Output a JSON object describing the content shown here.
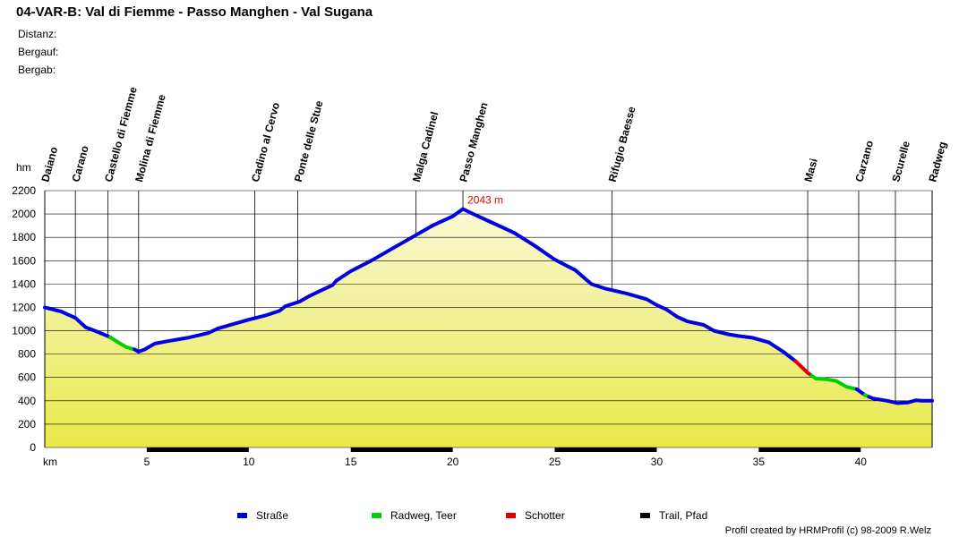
{
  "header": {
    "title": "04-VAR-B: Val di Fiemme - Passo Manghen - Val Sugana",
    "distance_label": "Distanz:",
    "ascent_label": "Bergauf:",
    "descent_label": "Bergab:"
  },
  "chart_data": {
    "type": "area",
    "title": "04-VAR-B: Val di Fiemme - Passo Manghen - Val Sugana",
    "xlabel": "km",
    "ylabel": "hm",
    "xlim": [
      0,
      43.5
    ],
    "ylim": [
      0,
      2200
    ],
    "x_ticks": [
      5,
      10,
      15,
      20,
      25,
      30,
      35,
      40
    ],
    "y_ticks": [
      0,
      200,
      400,
      600,
      800,
      1000,
      1200,
      1400,
      1600,
      1800,
      2000,
      2200
    ],
    "grid": "horizontal",
    "fill_gradient": [
      "#f8f8d4",
      "#e9e94a"
    ],
    "peak_annotation": {
      "x": 20.5,
      "y": 2043,
      "text": "2043 m",
      "color": "#e00000"
    },
    "profile": [
      {
        "x": 0,
        "y": 1200
      },
      {
        "x": 0.8,
        "y": 1165
      },
      {
        "x": 1.5,
        "y": 1110
      },
      {
        "x": 2.0,
        "y": 1030
      },
      {
        "x": 2.6,
        "y": 990
      },
      {
        "x": 3.2,
        "y": 945
      },
      {
        "x": 3.6,
        "y": 900
      },
      {
        "x": 4.0,
        "y": 860
      },
      {
        "x": 4.4,
        "y": 840
      },
      {
        "x": 4.6,
        "y": 820
      },
      {
        "x": 4.9,
        "y": 840
      },
      {
        "x": 5.4,
        "y": 890
      },
      {
        "x": 6.0,
        "y": 910
      },
      {
        "x": 7.0,
        "y": 940
      },
      {
        "x": 8.0,
        "y": 980
      },
      {
        "x": 8.5,
        "y": 1020
      },
      {
        "x": 9.3,
        "y": 1060
      },
      {
        "x": 10.0,
        "y": 1095
      },
      {
        "x": 10.8,
        "y": 1130
      },
      {
        "x": 11.5,
        "y": 1170
      },
      {
        "x": 11.8,
        "y": 1210
      },
      {
        "x": 12.5,
        "y": 1250
      },
      {
        "x": 13.0,
        "y": 1300
      },
      {
        "x": 13.6,
        "y": 1350
      },
      {
        "x": 14.1,
        "y": 1390
      },
      {
        "x": 14.3,
        "y": 1430
      },
      {
        "x": 15.0,
        "y": 1510
      },
      {
        "x": 16.0,
        "y": 1600
      },
      {
        "x": 17.0,
        "y": 1700
      },
      {
        "x": 18.0,
        "y": 1800
      },
      {
        "x": 19.0,
        "y": 1900
      },
      {
        "x": 20.0,
        "y": 1980
      },
      {
        "x": 20.5,
        "y": 2043
      },
      {
        "x": 21.0,
        "y": 2000
      },
      {
        "x": 22.0,
        "y": 1920
      },
      {
        "x": 23.0,
        "y": 1840
      },
      {
        "x": 24.0,
        "y": 1730
      },
      {
        "x": 25.0,
        "y": 1610
      },
      {
        "x": 26.0,
        "y": 1520
      },
      {
        "x": 26.8,
        "y": 1400
      },
      {
        "x": 27.5,
        "y": 1360
      },
      {
        "x": 28.5,
        "y": 1320
      },
      {
        "x": 29.5,
        "y": 1270
      },
      {
        "x": 30.0,
        "y": 1220
      },
      {
        "x": 30.5,
        "y": 1180
      },
      {
        "x": 31.0,
        "y": 1120
      },
      {
        "x": 31.5,
        "y": 1080
      },
      {
        "x": 32.3,
        "y": 1050
      },
      {
        "x": 32.8,
        "y": 1000
      },
      {
        "x": 33.5,
        "y": 970
      },
      {
        "x": 34.0,
        "y": 955
      },
      {
        "x": 34.7,
        "y": 940
      },
      {
        "x": 35.5,
        "y": 900
      },
      {
        "x": 36.2,
        "y": 820
      },
      {
        "x": 36.8,
        "y": 740
      },
      {
        "x": 37.4,
        "y": 640
      },
      {
        "x": 37.8,
        "y": 590
      },
      {
        "x": 38.3,
        "y": 585
      },
      {
        "x": 38.8,
        "y": 570
      },
      {
        "x": 39.3,
        "y": 520
      },
      {
        "x": 39.8,
        "y": 500
      },
      {
        "x": 40.2,
        "y": 450
      },
      {
        "x": 40.6,
        "y": 420
      },
      {
        "x": 41.3,
        "y": 400
      },
      {
        "x": 41.8,
        "y": 380
      },
      {
        "x": 42.3,
        "y": 385
      },
      {
        "x": 42.7,
        "y": 405
      },
      {
        "x": 43.0,
        "y": 400
      },
      {
        "x": 43.5,
        "y": 400
      }
    ],
    "segments": [
      {
        "type": "Straße",
        "from": 0,
        "to": 3.2
      },
      {
        "type": "Radweg, Teer",
        "from": 3.2,
        "to": 4.4
      },
      {
        "type": "Straße",
        "from": 4.4,
        "to": 36.8
      },
      {
        "type": "Schotter",
        "from": 36.8,
        "to": 37.6
      },
      {
        "type": "Radweg, Teer",
        "from": 37.6,
        "to": 39.8
      },
      {
        "type": "Straße",
        "from": 39.8,
        "to": 40.2
      },
      {
        "type": "Radweg, Teer",
        "from": 40.2,
        "to": 40.4
      },
      {
        "type": "Straße",
        "from": 40.4,
        "to": 43.5
      }
    ],
    "trail_bar": [
      {
        "from": 5,
        "to": 10
      },
      {
        "from": 15,
        "to": 20
      },
      {
        "from": 25,
        "to": 30
      },
      {
        "from": 35,
        "to": 40
      }
    ],
    "waypoints": [
      {
        "name": "Daiano",
        "x": 0
      },
      {
        "name": "Carano",
        "x": 1.5
      },
      {
        "name": "Castello di Fiemme",
        "x": 3.1
      },
      {
        "name": "Molina di Fiemme",
        "x": 4.6
      },
      {
        "name": "Cadino al Cervo",
        "x": 10.3
      },
      {
        "name": "Ponte delle Stue",
        "x": 12.4
      },
      {
        "name": "Malga Cadinel",
        "x": 18.2
      },
      {
        "name": "Passo Manghen",
        "x": 20.5
      },
      {
        "name": "Rifugio Baesse",
        "x": 27.8
      },
      {
        "name": "Masi",
        "x": 37.4
      },
      {
        "name": "Carzano",
        "x": 39.9
      },
      {
        "name": "Scurelle",
        "x": 41.7
      },
      {
        "name": "Radweg",
        "x": 43.5
      }
    ]
  },
  "legend": [
    {
      "label": "Straße",
      "color": "#0000e0"
    },
    {
      "label": "Radweg, Teer",
      "color": "#00d000"
    },
    {
      "label": "Schotter",
      "color": "#e00000"
    },
    {
      "label": "Trail, Pfad",
      "color": "#000000"
    }
  ],
  "credit": "Profil created by HRMProfil (c) 98-2009 R.Welz"
}
